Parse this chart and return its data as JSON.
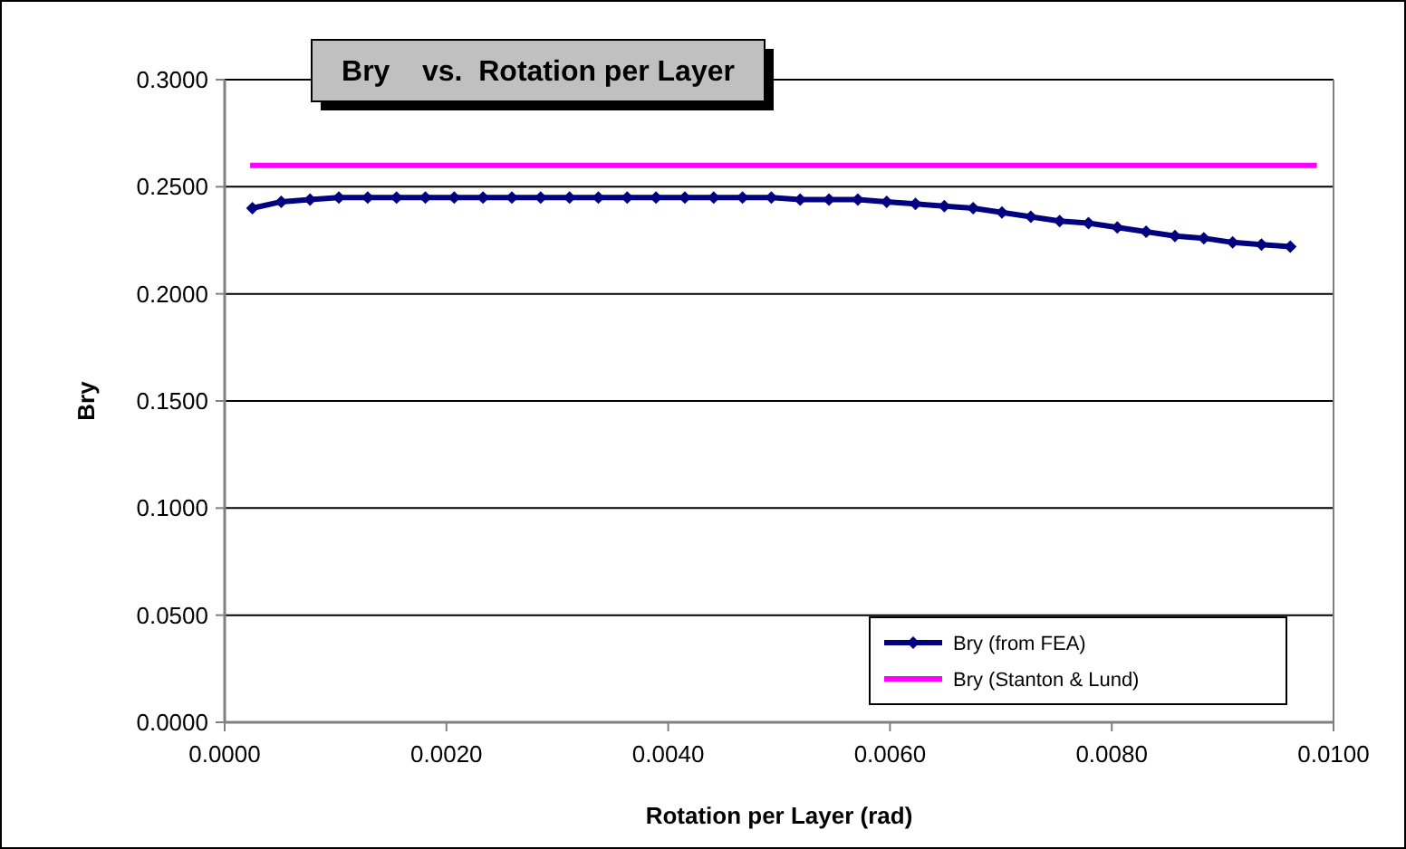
{
  "chart_data": {
    "type": "line",
    "title": "Bry    vs.  Rotation per Layer",
    "xlabel": "Rotation per Layer (rad)",
    "ylabel": "Bry",
    "xlim": [
      0,
      0.01
    ],
    "xticks": [
      {
        "value": 0,
        "label": "0.0000"
      },
      {
        "value": 0.002,
        "label": "0.0020"
      },
      {
        "value": 0.004,
        "label": "0.0040"
      },
      {
        "value": 0.006,
        "label": "0.0060"
      },
      {
        "value": 0.008,
        "label": "0.0080"
      },
      {
        "value": 0.01,
        "label": "0.0100"
      }
    ],
    "ylim": [
      0,
      0.3
    ],
    "yticks": [
      {
        "value": 0,
        "label": "0.0000"
      },
      {
        "value": 0.05,
        "label": "0.0500"
      },
      {
        "value": 0.1,
        "label": "0.1000"
      },
      {
        "value": 0.15,
        "label": "0.1500"
      },
      {
        "value": 0.2,
        "label": "0.2000"
      },
      {
        "value": 0.25,
        "label": "0.2500"
      },
      {
        "value": 0.3,
        "label": "0.3000"
      }
    ],
    "grid": "y",
    "legend": "bottom right",
    "series": [
      {
        "name": "Bry (from FEA)",
        "color": "#000080",
        "marker": "diamond",
        "x": [
          0.00025,
          0.00051,
          0.00077,
          0.00103,
          0.00129,
          0.00155,
          0.00181,
          0.00207,
          0.00233,
          0.00259,
          0.00285,
          0.00311,
          0.00337,
          0.00363,
          0.00389,
          0.00415,
          0.00441,
          0.00467,
          0.00493,
          0.00519,
          0.00545,
          0.00571,
          0.00597,
          0.00623,
          0.00649,
          0.00675,
          0.00701,
          0.00727,
          0.00753,
          0.00779,
          0.00805,
          0.00831,
          0.00857,
          0.00883,
          0.00909,
          0.00935,
          0.00961
        ],
        "values": [
          0.24,
          0.243,
          0.244,
          0.245,
          0.245,
          0.245,
          0.245,
          0.245,
          0.245,
          0.245,
          0.245,
          0.245,
          0.245,
          0.245,
          0.245,
          0.245,
          0.245,
          0.245,
          0.245,
          0.244,
          0.244,
          0.244,
          0.243,
          0.242,
          0.241,
          0.24,
          0.238,
          0.236,
          0.234,
          0.233,
          0.231,
          0.229,
          0.227,
          0.226,
          0.224,
          0.223,
          0.222
        ]
      },
      {
        "name": "Bry (Stanton & Lund)",
        "color": "#ff00ff",
        "marker": "none",
        "x": [
          0.00023,
          0.00985
        ],
        "values": [
          0.26,
          0.26
        ]
      }
    ]
  }
}
